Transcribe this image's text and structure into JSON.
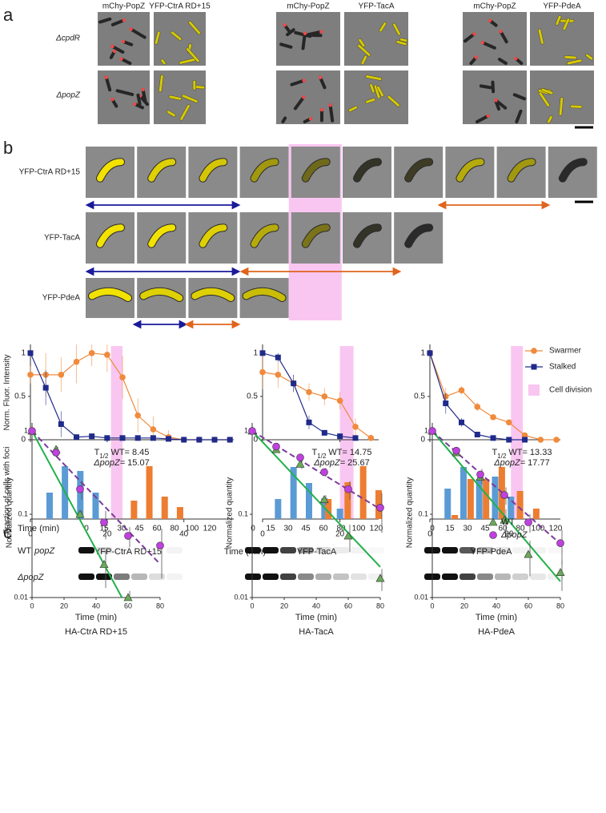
{
  "panel_labels": [
    "a",
    "b",
    "c"
  ],
  "panel_a": {
    "channels": [
      [
        "mChy-PopZ",
        "YFP-CtrA RD+15"
      ],
      [
        "mChy-PopZ",
        "YFP-TacA"
      ],
      [
        "mChy-PopZ",
        "YFP-PdeA"
      ]
    ],
    "rows": [
      "ΔcpdR",
      "ΔpopZ"
    ]
  },
  "panel_b": {
    "rows": [
      "YFP-CtrA RD+15",
      "YFP-TacA",
      "YFP-PdeA"
    ],
    "ylabel_top": "Norm. Fluor. Intensity",
    "ylabel_bottom": "Fraction of cells with foci",
    "xlabel": "Time (min)",
    "division_label": "Cell division",
    "division_color": "#f9c6f1"
  },
  "panel_c": {
    "time_label": "Time (min)",
    "blot_rows": [
      {
        "strain": "WT",
        "gene": "popZ"
      },
      {
        "gene": "ΔpopZ"
      }
    ],
    "blot_times": [
      [
        0,
        15,
        30,
        45,
        60,
        80,
        100,
        120
      ],
      [
        0,
        15,
        30,
        45,
        60,
        80,
        100,
        120
      ],
      [
        0,
        15,
        30,
        45,
        60,
        80,
        100,
        120
      ]
    ]
  },
  "chart_data": [
    {
      "type": "line",
      "title": "YFP-CtrA RD+15",
      "xlim": [
        0,
        53
      ],
      "xticks": [
        0,
        20,
        40
      ],
      "ylim": [
        0,
        1.1
      ],
      "yticks": [
        0,
        0.5,
        1
      ],
      "division": [
        21,
        24
      ],
      "legend": false,
      "series": [
        {
          "name": "Swarmer",
          "color": "#f08a3c",
          "marker": "circle",
          "x": [
            0,
            4,
            8,
            12,
            16,
            20,
            24,
            28,
            32,
            36,
            40,
            44,
            48,
            52
          ],
          "values": [
            0.75,
            0.75,
            0.75,
            0.9,
            1.0,
            0.98,
            0.72,
            0.28,
            0.12,
            0.03,
            0,
            0,
            0,
            0
          ],
          "errors": [
            0.1,
            0.25,
            0.2,
            0.25,
            0.15,
            0.2,
            0.25,
            0.2,
            0.15,
            0.08,
            0.02,
            0.01,
            0.01,
            0.01
          ]
        },
        {
          "name": "Stalked",
          "color": "#1f2a8a",
          "marker": "square",
          "x": [
            0,
            4,
            8,
            12,
            16,
            20,
            24,
            28,
            32,
            36,
            40,
            44,
            48,
            52
          ],
          "values": [
            1,
            0.6,
            0.18,
            0.03,
            0.04,
            0.02,
            0.02,
            0.02,
            0.02,
            0.01,
            0,
            0,
            0,
            0
          ],
          "errors": [
            0,
            0.2,
            0.15,
            0.02,
            0.02,
            0.01,
            0.01,
            0.01,
            0.01,
            0.01,
            0.01,
            0.01,
            0.01,
            0.01
          ]
        }
      ],
      "foci_ylim": [
        0,
        0.35
      ],
      "foci": [
        {
          "color": "#5b9bd5",
          "x": [
            5,
            9,
            13,
            17
          ],
          "values": [
            0.165,
            0.33,
            0.3,
            0.165
          ]
        },
        {
          "color": "#ed7d31",
          "x": [
            27,
            31,
            35,
            39
          ],
          "values": [
            0.115,
            0.33,
            0.14,
            0.075
          ]
        }
      ]
    },
    {
      "type": "line",
      "title": "YFP-TacA",
      "xlim": [
        0,
        30
      ],
      "xticks": [
        0,
        20
      ],
      "ylim": [
        0,
        1.1
      ],
      "yticks": [
        0,
        0.5,
        1
      ],
      "division": [
        20,
        23.5
      ],
      "legend": false,
      "series": [
        {
          "name": "Swarmer",
          "color": "#f08a3c",
          "marker": "circle",
          "x": [
            0,
            4,
            8,
            12,
            16,
            20,
            24,
            28
          ],
          "values": [
            0.78,
            0.75,
            0.65,
            0.55,
            0.5,
            0.45,
            0.15,
            0.02
          ],
          "errors": [
            0.2,
            0.15,
            0.1,
            0.1,
            0.1,
            0.1,
            0.1,
            0.03
          ]
        },
        {
          "name": "Stalked",
          "color": "#1f2a8a",
          "marker": "square",
          "x": [
            0,
            4,
            8,
            12,
            16,
            20,
            24
          ],
          "values": [
            1,
            0.95,
            0.65,
            0.2,
            0.08,
            0.04,
            0.02
          ],
          "errors": [
            0.02,
            0.05,
            0.1,
            0.08,
            0.03,
            0.02,
            0.01
          ]
        }
      ],
      "foci_ylim": [
        0,
        0.35
      ],
      "foci": [
        {
          "color": "#5b9bd5",
          "x": [
            4,
            8,
            12,
            16,
            20
          ],
          "values": [
            0.125,
            0.325,
            0.225,
            0.13,
            0.065
          ]
        },
        {
          "color": "#ed7d31",
          "x": [
            17,
            22,
            26,
            30
          ],
          "values": [
            0.125,
            0.23,
            0.33,
            0.18
          ]
        }
      ]
    },
    {
      "type": "line",
      "title": "YFP-PdeA",
      "xlim": [
        0,
        33
      ],
      "xticks": [
        0,
        20
      ],
      "ylim": [
        0,
        1.1
      ],
      "yticks": [
        0,
        0.5,
        1
      ],
      "division": [
        20.5,
        23.5
      ],
      "legend": true,
      "series": [
        {
          "name": "Swarmer",
          "color": "#f08a3c",
          "marker": "circle",
          "x": [
            0,
            4,
            8,
            12,
            16,
            20,
            24,
            28,
            32
          ],
          "values": [
            1,
            0.5,
            0.57,
            0.38,
            0.26,
            0.2,
            0.05,
            0,
            0
          ],
          "errors": [
            0.05,
            0.1,
            0.05,
            0.05,
            0.03,
            0.03,
            0.02,
            0.01,
            0.01
          ]
        },
        {
          "name": "Stalked",
          "color": "#1f2a8a",
          "marker": "square",
          "x": [
            0,
            4,
            8,
            12,
            16,
            20,
            24
          ],
          "values": [
            1,
            0.42,
            0.2,
            0.06,
            0.02,
            0,
            0
          ],
          "errors": [
            0.05,
            0.12,
            0.05,
            0.02,
            0.01,
            0.01,
            0.01
          ]
        }
      ],
      "foci_ylim": [
        0,
        0.35
      ],
      "foci": [
        {
          "color": "#5b9bd5",
          "x": [
            4.5,
            8.5,
            12.5,
            16.5,
            20.5
          ],
          "values": [
            0.19,
            0.325,
            0.25,
            0.265,
            0.14
          ]
        },
        {
          "color": "#ed7d31",
          "x": [
            6.3,
            10.3,
            14.2,
            18.2,
            22.8,
            26.9
          ],
          "values": [
            0.025,
            0.25,
            0.25,
            0.325,
            0.175,
            0.065
          ]
        }
      ]
    },
    {
      "type": "line",
      "yscale": "log",
      "title": "HA-CtrA RD+15",
      "xlabel": "Time (min)",
      "ylabel": "Normalized quantity",
      "xlim": [
        0,
        80
      ],
      "xticks": [
        0,
        20,
        40,
        60,
        80
      ],
      "ylim": [
        0.01,
        1.25
      ],
      "yticks": [
        0.01,
        0.1,
        1
      ],
      "annotation": {
        "symbol": "T",
        "subscript": "1/2"
      },
      "legend": false,
      "series": [
        {
          "name": "WT",
          "color": "#6aaa5a",
          "line_color": "#22b04a",
          "marker": "triangle",
          "x": [
            0,
            15,
            30,
            45,
            60
          ],
          "values": [
            1,
            0.6,
            0.1,
            0.025,
            0.01
          ],
          "errors": [
            0,
            0.05,
            0.01,
            0.012,
            0.002
          ],
          "half_life_label": "WT=",
          "half_life": 8.45
        },
        {
          "name": "ΔpopZ",
          "color": "#c040e0",
          "line_color": "#7a3a9a",
          "dashed": true,
          "marker": "circle",
          "x": [
            0,
            15,
            30,
            45,
            60,
            80
          ],
          "values": [
            1,
            0.55,
            0.2,
            0.08,
            0.055,
            0.042
          ],
          "errors": [
            0,
            0.05,
            0.05,
            0.03,
            0.015,
            0.025
          ],
          "half_life_label": "ΔpopZ=",
          "half_life": 15.07
        }
      ]
    },
    {
      "type": "line",
      "yscale": "log",
      "title": "HA-TacA",
      "xlabel": "Time (min)",
      "ylabel": "Normalized quantity",
      "xlim": [
        0,
        80
      ],
      "xticks": [
        0,
        20,
        40,
        60,
        80
      ],
      "ylim": [
        0.01,
        1.25
      ],
      "yticks": [
        0.01,
        0.1,
        1
      ],
      "annotation": {
        "symbol": "T",
        "subscript": "1/2"
      },
      "legend": false,
      "series": [
        {
          "name": "WT",
          "color": "#6aaa5a",
          "line_color": "#22b04a",
          "marker": "triangle",
          "x": [
            0,
            15,
            30,
            45,
            60,
            80
          ],
          "values": [
            1,
            0.6,
            0.4,
            0.15,
            0.055,
            0.017
          ],
          "errors": [
            0,
            0.04,
            0.05,
            0.02,
            0.02,
            0.005
          ],
          "half_life_label": "WT=",
          "half_life": 14.75
        },
        {
          "name": "ΔpopZ",
          "color": "#c040e0",
          "line_color": "#7a3a9a",
          "dashed": true,
          "marker": "circle",
          "x": [
            0,
            15,
            30,
            45,
            60,
            80
          ],
          "values": [
            1,
            0.65,
            0.48,
            0.32,
            0.2,
            0.12
          ],
          "errors": [
            0,
            0.04,
            0.05,
            0.04,
            0.05,
            0.06
          ],
          "half_life_label": "ΔpopZ=",
          "half_life": 25.67
        }
      ]
    },
    {
      "type": "line",
      "yscale": "log",
      "title": "HA-PdeA",
      "xlabel": "Time (min)",
      "ylabel": "Normalized quantity",
      "xlim": [
        0,
        80
      ],
      "xticks": [
        0,
        20,
        40,
        60,
        80
      ],
      "ylim": [
        0.01,
        1.25
      ],
      "yticks": [
        0.01,
        0.1,
        1
      ],
      "annotation": {
        "symbol": "T",
        "subscript": "1/2"
      },
      "legend": true,
      "series": [
        {
          "name": "WT",
          "color": "#6aaa5a",
          "line_color": "#22b04a",
          "marker": "triangle",
          "x": [
            0,
            15,
            30,
            45,
            60,
            80
          ],
          "values": [
            1,
            0.55,
            0.28,
            0.085,
            0.033,
            0.02
          ],
          "errors": [
            0,
            0.05,
            0.05,
            0.03,
            0.015,
            0.008
          ],
          "half_life_label": "WT=",
          "half_life": 13.33
        },
        {
          "name": "ΔpopZ",
          "color": "#c040e0",
          "line_color": "#7a3a9a",
          "dashed": true,
          "marker": "circle",
          "x": [
            0,
            15,
            30,
            45,
            60,
            80
          ],
          "values": [
            1,
            0.58,
            0.3,
            0.17,
            0.08,
            0.045
          ],
          "errors": [
            0,
            0.04,
            0.05,
            0.04,
            0.02,
            0.02
          ],
          "half_life_label": "ΔpopZ=",
          "half_life": 17.77
        }
      ]
    }
  ]
}
